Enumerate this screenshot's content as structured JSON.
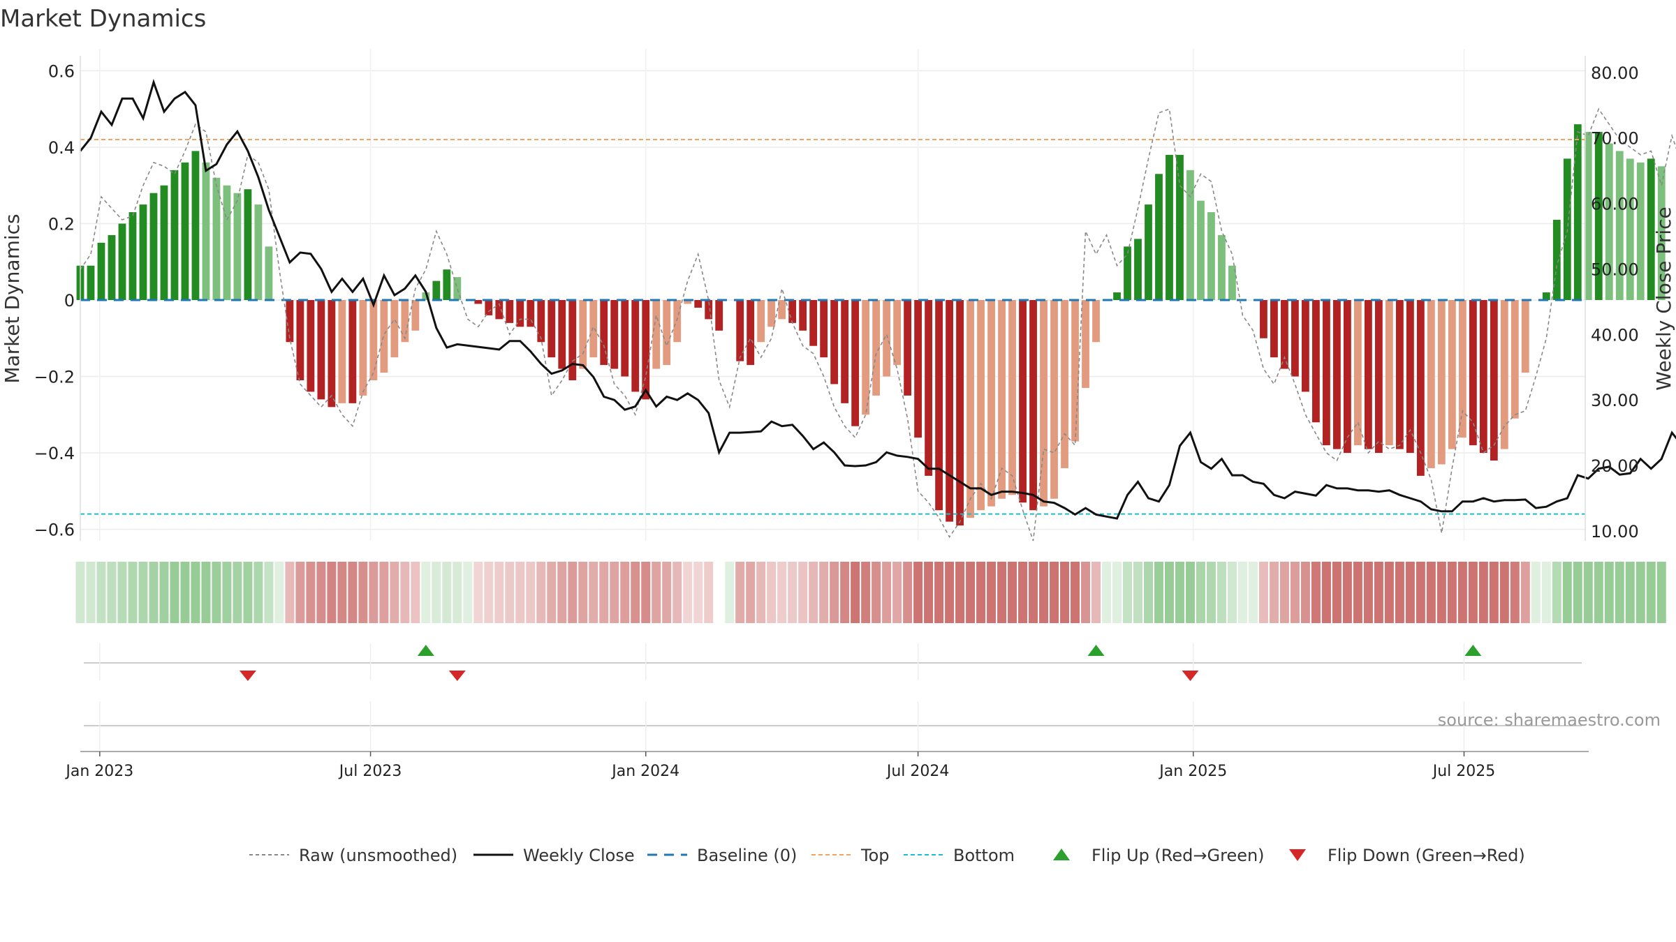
{
  "title": "Market Dynamics",
  "source_note": "source: sharemaestro.com",
  "colors": {
    "strong_green": "#228b22",
    "light_green": "#7dbf7d",
    "strong_red": "#b22222",
    "light_red": "#e39b80",
    "close_line": "#111111",
    "raw_line": "#888888",
    "baseline": "#1f77b4",
    "top_line": "#f4a261",
    "bottom_line": "#17becf",
    "flip_up": "#2ca02c",
    "flip_down": "#d62728"
  },
  "chart_data": {
    "type": "bar",
    "title": "Market Dynamics",
    "ylabel": "Market Dynamics",
    "y2label": "Weekly Close Price",
    "ylim": [
      -0.63,
      0.63
    ],
    "y2lim": [
      8.5,
      82
    ],
    "yticks": [
      0.6,
      0.4,
      0.2,
      0,
      -0.2,
      -0.4,
      -0.6
    ],
    "ytick_labels": [
      "0.6",
      "0.4",
      "0.2",
      "0",
      "−0.2",
      "−0.4",
      "−0.6"
    ],
    "y2ticks": [
      80,
      70,
      60,
      50,
      40,
      30,
      20,
      10
    ],
    "y2tick_labels": [
      "80.00",
      "70.00",
      "60.00",
      "50.00",
      "40.00",
      "30.00",
      "20.00",
      "10.00"
    ],
    "xlim": [
      "2022-12-19",
      "2025-09-20"
    ],
    "xticks": [
      "2023-01-01",
      "2023-07-01",
      "2024-01-01",
      "2024-07-01",
      "2025-01-01",
      "2025-07-01"
    ],
    "xtick_labels": [
      "Jan 2023",
      "Jul 2023",
      "Jan 2024",
      "Jul 2024",
      "Jan 2025",
      "Jul 2025"
    ],
    "first_week": "2022-12-19",
    "top_level": 0.42,
    "bottom_level": -0.56,
    "grid": true,
    "legend_position": "bottom-center",
    "series": [
      {
        "name": "Market Dynamics",
        "values": [
          0.09,
          0.09,
          0.15,
          0.17,
          0.2,
          0.23,
          0.25,
          0.28,
          0.3,
          0.34,
          0.36,
          0.39,
          0.36,
          0.32,
          0.3,
          0.28,
          0.29,
          0.25,
          0.14,
          0.0,
          -0.11,
          -0.21,
          -0.24,
          -0.26,
          -0.28,
          -0.27,
          -0.27,
          -0.25,
          -0.21,
          -0.19,
          -0.15,
          -0.11,
          -0.08,
          0.02,
          0.05,
          0.08,
          0.06,
          0.0,
          -0.01,
          -0.04,
          -0.05,
          -0.06,
          -0.07,
          -0.07,
          -0.11,
          -0.15,
          -0.18,
          -0.21,
          -0.18,
          -0.15,
          -0.17,
          -0.18,
          -0.2,
          -0.24,
          -0.26,
          -0.18,
          -0.17,
          -0.11,
          -0.01,
          -0.02,
          -0.05,
          -0.08,
          0.0,
          -0.16,
          -0.17,
          -0.11,
          -0.07,
          -0.05,
          -0.06,
          -0.08,
          -0.12,
          -0.15,
          -0.22,
          -0.27,
          -0.33,
          -0.3,
          -0.25,
          -0.2,
          -0.17,
          -0.25,
          -0.36,
          -0.46,
          -0.55,
          -0.58,
          -0.59,
          -0.57,
          -0.55,
          -0.54,
          -0.52,
          -0.51,
          -0.53,
          -0.55,
          -0.54,
          -0.52,
          -0.44,
          -0.37,
          -0.23,
          -0.11,
          0.0,
          0.02,
          0.14,
          0.16,
          0.25,
          0.33,
          0.38,
          0.38,
          0.34,
          0.26,
          0.23,
          0.17,
          0.09,
          0.0,
          0.0,
          -0.1,
          -0.15,
          -0.18,
          -0.2,
          -0.24,
          -0.32,
          -0.38,
          -0.39,
          -0.4,
          -0.38,
          -0.39,
          -0.4,
          -0.38,
          -0.39,
          -0.4,
          -0.46,
          -0.44,
          -0.43,
          -0.39,
          -0.36,
          -0.38,
          -0.4,
          -0.42,
          -0.39,
          -0.31,
          -0.19,
          0.0,
          0.02,
          0.21,
          0.37,
          0.46,
          0.44,
          0.44,
          0.41,
          0.39,
          0.37,
          0.36,
          0.37,
          0.35
        ]
      },
      {
        "name": "Raw (unsmoothed)",
        "values": [
          0.08,
          0.12,
          0.27,
          0.24,
          0.21,
          0.22,
          0.3,
          0.36,
          0.35,
          0.33,
          0.39,
          0.46,
          0.44,
          0.3,
          0.21,
          0.26,
          0.38,
          0.36,
          0.29,
          0.08,
          -0.1,
          -0.22,
          -0.25,
          -0.28,
          -0.25,
          -0.3,
          -0.33,
          -0.24,
          -0.19,
          -0.09,
          -0.05,
          -0.1,
          0.03,
          0.08,
          0.18,
          0.12,
          0.03,
          -0.05,
          -0.07,
          -0.03,
          -0.01,
          -0.09,
          -0.05,
          -0.05,
          -0.1,
          -0.25,
          -0.21,
          -0.16,
          -0.14,
          -0.07,
          -0.12,
          -0.22,
          -0.25,
          -0.3,
          -0.2,
          -0.04,
          -0.12,
          -0.05,
          0.05,
          0.12,
          0.0,
          -0.21,
          -0.28,
          -0.15,
          -0.1,
          -0.15,
          -0.1,
          0.03,
          -0.06,
          -0.12,
          -0.14,
          -0.2,
          -0.28,
          -0.33,
          -0.36,
          -0.3,
          -0.14,
          -0.09,
          -0.18,
          -0.31,
          -0.5,
          -0.53,
          -0.57,
          -0.62,
          -0.58,
          -0.52,
          -0.48,
          -0.52,
          -0.44,
          -0.46,
          -0.55,
          -0.63,
          -0.39,
          -0.4,
          -0.35,
          -0.38,
          0.18,
          0.12,
          0.17,
          0.09,
          0.12,
          0.24,
          0.37,
          0.49,
          0.5,
          0.3,
          0.27,
          0.33,
          0.31,
          0.18,
          0.12,
          -0.04,
          -0.08,
          -0.18,
          -0.22,
          -0.15,
          -0.22,
          -0.3,
          -0.35,
          -0.4,
          -0.42,
          -0.36,
          -0.32,
          -0.4,
          -0.37,
          -0.39,
          -0.38,
          -0.34,
          -0.4,
          -0.47,
          -0.61,
          -0.44,
          -0.29,
          -0.32,
          -0.4,
          -0.38,
          -0.33,
          -0.3,
          -0.29,
          -0.2,
          -0.1,
          0.09,
          0.18,
          0.44,
          0.43,
          0.5,
          0.46,
          0.42,
          0.4,
          0.38,
          0.39,
          0.3,
          0.43,
          0.35
        ]
      },
      {
        "name": "Weekly Close",
        "values": [
          68.0,
          70.0,
          74.0,
          72.0,
          76.0,
          76.0,
          73.0,
          78.5,
          74.0,
          76.0,
          77.0,
          75.0,
          65.0,
          66.0,
          69.0,
          71.0,
          68.0,
          64.0,
          59.0,
          55.0,
          51.0,
          52.5,
          52.3,
          50.0,
          46.5,
          48.5,
          46.5,
          48.5,
          44.5,
          49.0,
          46.0,
          47.0,
          49.0,
          46.5,
          41.0,
          38.0,
          38.5,
          38.3,
          38.1,
          37.9,
          37.7,
          39.0,
          39.0,
          37.4,
          35.5,
          34.0,
          34.5,
          35.5,
          35.3,
          33.5,
          30.5,
          30.0,
          28.5,
          29.0,
          31.5,
          29.0,
          30.5,
          30.0,
          31.0,
          30.0,
          28.0,
          22.0,
          25.0,
          25.0,
          25.1,
          25.2,
          26.7,
          26.0,
          26.2,
          24.5,
          22.5,
          23.5,
          22.0,
          20.0,
          19.9,
          20.0,
          20.5,
          22.0,
          21.5,
          21.3,
          21.0,
          19.5,
          19.5,
          18.5,
          17.5,
          16.5,
          16.5,
          15.5,
          16.0,
          16.0,
          15.8,
          15.5,
          14.5,
          14.3,
          13.5,
          12.5,
          13.5,
          12.5,
          12.2,
          11.9,
          15.5,
          17.5,
          15.0,
          14.5,
          17.0,
          23.0,
          25.0,
          20.5,
          19.5,
          21.0,
          18.5,
          18.5,
          17.5,
          17.2,
          15.5,
          15.0,
          16.0,
          15.7,
          15.4,
          17.0,
          16.5,
          16.5,
          16.2,
          16.2,
          16.0,
          16.2,
          15.5,
          15.0,
          14.5,
          13.3,
          13.0,
          13.0,
          14.5,
          14.5,
          15.0,
          14.5,
          14.7,
          14.7,
          14.8,
          13.5,
          13.7,
          14.5,
          15.0,
          18.5,
          18.0,
          19.5,
          19.8,
          18.6,
          18.8,
          21.0,
          19.5,
          21.0,
          25.0,
          23.0
        ]
      }
    ],
    "strip_gap_weeks": [
      61
    ],
    "flip_up_dates": [
      "2023-08-07",
      "2024-10-28",
      "2025-07-07"
    ],
    "flip_down_dates": [
      "2023-04-10",
      "2023-08-28",
      "2024-12-30"
    ]
  },
  "legend": [
    {
      "label": "Raw (unsmoothed)",
      "kind": "raw"
    },
    {
      "label": "Weekly Close",
      "kind": "close"
    },
    {
      "label": "Baseline (0)",
      "kind": "baseline"
    },
    {
      "label": "Top",
      "kind": "top"
    },
    {
      "label": "Bottom",
      "kind": "bottom"
    },
    {
      "label": "Flip Up (Red→Green)",
      "kind": "flip_up"
    },
    {
      "label": "Flip Down (Green→Red)",
      "kind": "flip_down"
    }
  ]
}
